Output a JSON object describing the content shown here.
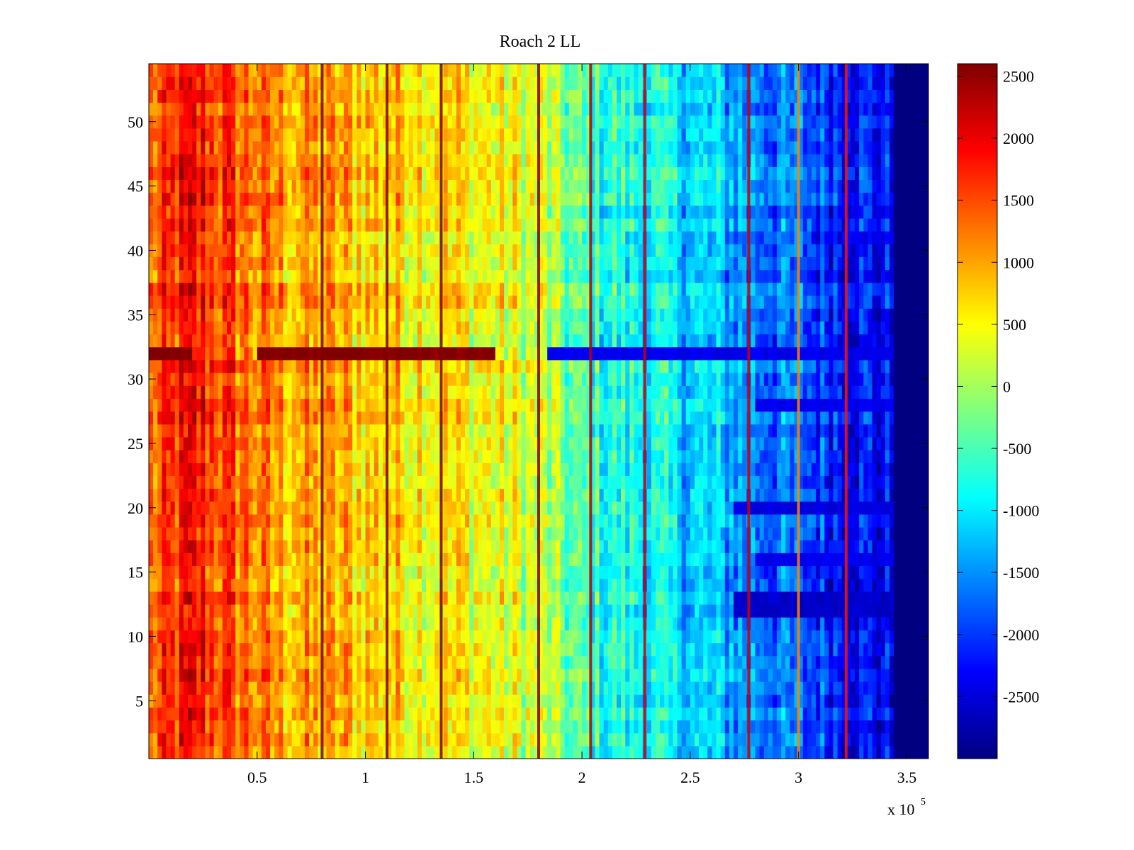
{
  "chart_data": {
    "type": "heatmap",
    "title": "Roach 2 LL",
    "xlabel": "",
    "ylabel": "",
    "x_range": [
      0,
      360000
    ],
    "y_range": [
      0.5,
      54.5
    ],
    "x_ticks": [
      50000,
      100000,
      150000,
      200000,
      250000,
      300000,
      350000
    ],
    "x_tick_labels": [
      "0.5",
      "1",
      "1.5",
      "2",
      "2.5",
      "3",
      "3.5"
    ],
    "x_exponent_label": {
      "base": "x 10",
      "exponent": "5"
    },
    "y_ticks": [
      5,
      10,
      15,
      20,
      25,
      30,
      35,
      40,
      45,
      50
    ],
    "y_tick_labels": [
      "5",
      "10",
      "15",
      "20",
      "25",
      "30",
      "35",
      "40",
      "45",
      "50"
    ],
    "colorbar": {
      "colormap": "jet",
      "range": [
        -3000,
        2600
      ],
      "ticks": [
        2500,
        2000,
        1500,
        1000,
        500,
        0,
        -500,
        -1000,
        -1500,
        -2000,
        -2500
      ],
      "tick_labels": [
        "2500",
        "2000",
        "1500",
        "1000",
        "500",
        "0",
        "-500",
        "-1000",
        "-1500",
        "-2000",
        "-2500"
      ]
    },
    "grid": false,
    "rows": 54,
    "x_columns": 180,
    "column_profile": {
      "description_of_trend": "values decrease from left to right",
      "x": [
        0,
        10000,
        20000,
        40000,
        60000,
        100000,
        140000,
        180000,
        200000,
        240000,
        270000,
        300000,
        330000,
        345000
      ],
      "values": [
        1200,
        1500,
        1800,
        1400,
        1000,
        800,
        600,
        200,
        -600,
        -1000,
        -1400,
        -1800,
        -2200,
        -2400
      ]
    },
    "saturated_min_band": {
      "x_from": 345000,
      "x_to": 360000,
      "value": -3000
    },
    "vertical_streaks": [
      {
        "x": 80000,
        "value": 2600
      },
      {
        "x": 110000,
        "value": 2600
      },
      {
        "x": 135000,
        "value": 2600
      },
      {
        "x": 180000,
        "value": 2600
      },
      {
        "x": 204000,
        "value": 2300
      },
      {
        "x": 229000,
        "value": 2200
      },
      {
        "x": 277000,
        "value": 2200
      },
      {
        "x": 300000,
        "value": 1200
      },
      {
        "x": 322000,
        "value": 1800
      }
    ],
    "row_anomalies": [
      {
        "row": 32,
        "x_from": 0,
        "x_to": 20000,
        "value": 2600
      },
      {
        "row": 32,
        "x_from": 49000,
        "x_to": 160000,
        "value": 2600
      },
      {
        "row": 32,
        "x_from": 184000,
        "x_to": 345000,
        "value": -2400
      },
      {
        "row": 12,
        "x_from": 270000,
        "x_to": 345000,
        "value": -2600
      },
      {
        "row": 13,
        "x_from": 270000,
        "x_to": 345000,
        "value": -2600
      },
      {
        "row": 20,
        "x_from": 270000,
        "x_to": 345000,
        "value": -2500
      },
      {
        "row": 16,
        "x_from": 280000,
        "x_to": 345000,
        "value": -2400
      },
      {
        "row": 28,
        "x_from": 280000,
        "x_to": 345000,
        "value": -2400
      }
    ]
  }
}
